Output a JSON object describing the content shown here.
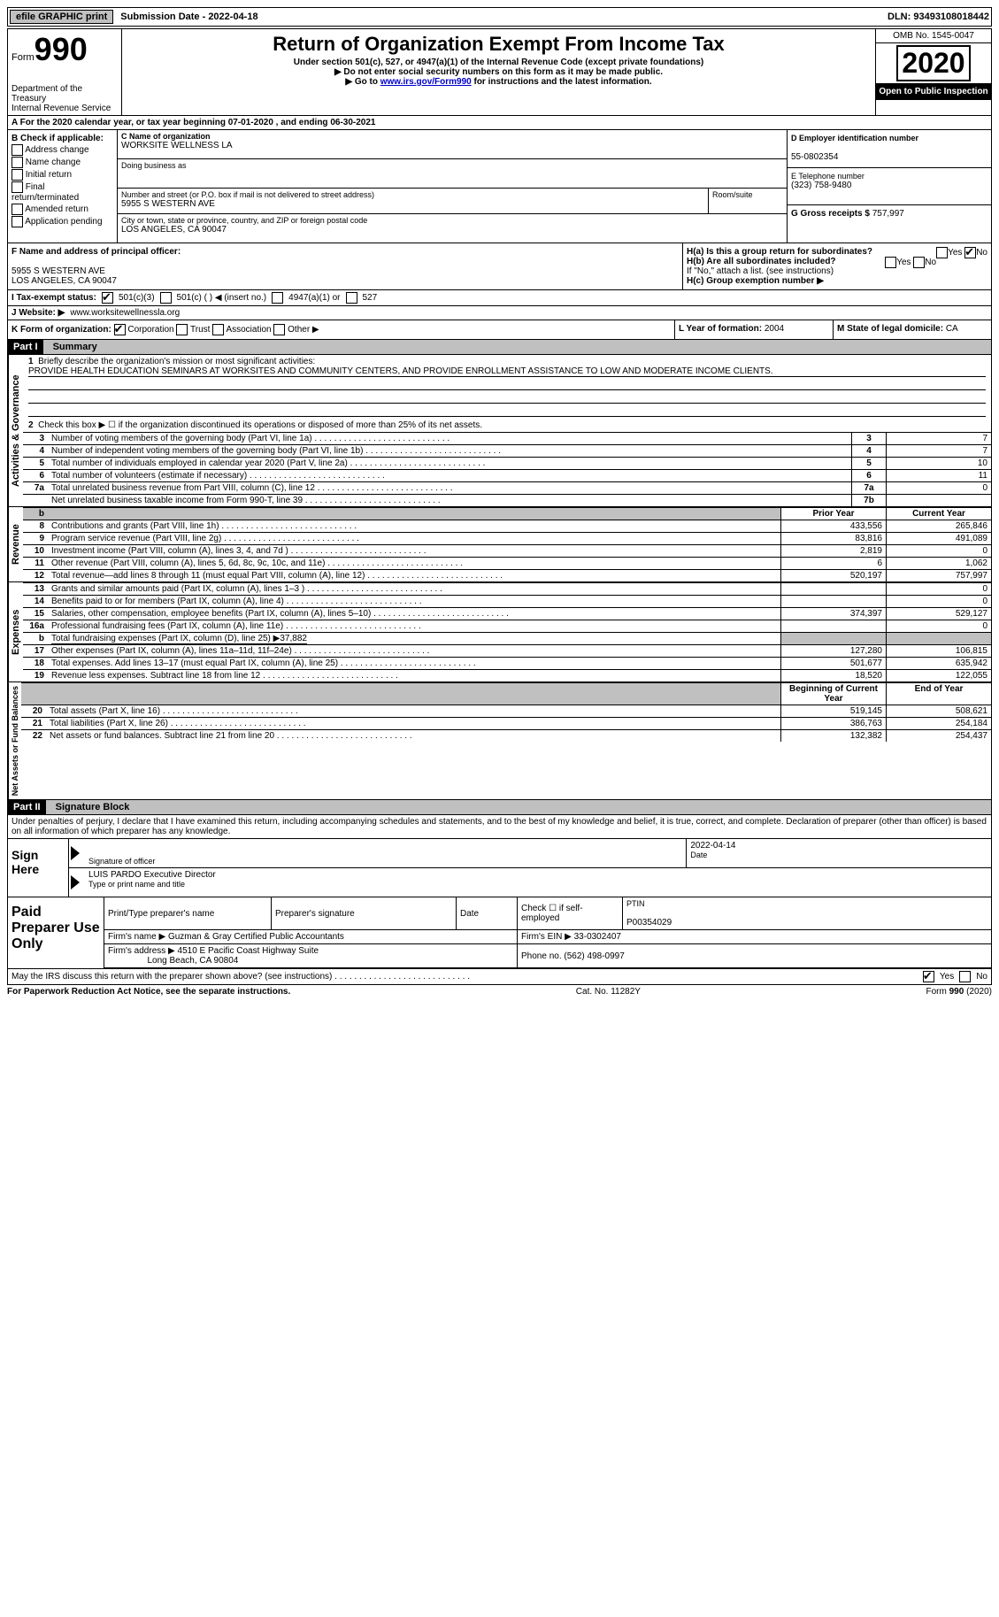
{
  "topbar": {
    "efile": "efile GRAPHIC print",
    "submission": "Submission Date - 2022-04-18",
    "dln": "DLN: 93493108018442"
  },
  "header": {
    "form_small": "Form",
    "form_big": "990",
    "dept1": "Department of the Treasury",
    "dept2": "Internal Revenue Service",
    "title": "Return of Organization Exempt From Income Tax",
    "subtitle": "Under section 501(c), 527, or 4947(a)(1) of the Internal Revenue Code (except private foundations)",
    "note1": "▶ Do not enter social security numbers on this form as it may be made public.",
    "note2_pre": "▶ Go to ",
    "note2_link": "www.irs.gov/Form990",
    "note2_post": " for instructions and the latest information.",
    "omb": "OMB No. 1545-0047",
    "year": "2020",
    "open": "Open to Public Inspection"
  },
  "row_a": "A For the 2020 calendar year, or tax year beginning 07-01-2020   , and ending 06-30-2021",
  "section_b": {
    "label": "B Check if applicable:",
    "opts": [
      "Address change",
      "Name change",
      "Initial return",
      "Final return/terminated",
      "Amended return",
      "Application pending"
    ]
  },
  "section_c": {
    "name_lbl": "C Name of organization",
    "name": "WORKSITE WELLNESS LA",
    "dba_lbl": "Doing business as",
    "addr_lbl": "Number and street (or P.O. box if mail is not delivered to street address)",
    "addr": "5955 S WESTERN AVE",
    "room_lbl": "Room/suite",
    "city_lbl": "City or town, state or province, country, and ZIP or foreign postal code",
    "city": "LOS ANGELES, CA  90047"
  },
  "section_d": {
    "lbl": "D Employer identification number",
    "val": "55-0802354"
  },
  "section_e": {
    "lbl": "E Telephone number",
    "val": "(323) 758-9480"
  },
  "section_g": {
    "lbl": "G Gross receipts $",
    "val": "757,997"
  },
  "section_f": {
    "lbl": "F Name and address of principal officer:",
    "addr1": "5955 S WESTERN AVE",
    "addr2": "LOS ANGELES, CA  90047"
  },
  "section_h": {
    "ha": "H(a)  Is this a group return for subordinates?",
    "hb": "H(b)  Are all subordinates included?",
    "hnote": "If \"No,\" attach a list. (see instructions)",
    "hc": "H(c)  Group exemption number ▶",
    "yes": "Yes",
    "no": "No"
  },
  "row_i": {
    "lbl": "I   Tax-exempt status:",
    "o1": "501(c)(3)",
    "o2": "501(c) (  ) ◀ (insert no.)",
    "o3": "4947(a)(1) or",
    "o4": "527"
  },
  "row_j": {
    "lbl": "J   Website: ▶",
    "val": "www.worksitewellnessla.org"
  },
  "row_k": {
    "lbl": "K Form of organization:",
    "o1": "Corporation",
    "o2": "Trust",
    "o3": "Association",
    "o4": "Other ▶"
  },
  "row_l": {
    "lbl": "L Year of formation:",
    "val": "2004"
  },
  "row_m": {
    "lbl": "M State of legal domicile:",
    "val": "CA"
  },
  "part1": {
    "hdr": "Part I",
    "title": "Summary"
  },
  "summary1": {
    "lbl": "Briefly describe the organization's mission or most significant activities:",
    "text": "PROVIDE HEALTH EDUCATION SEMINARS AT WORKSITES AND COMMUNITY CENTERS, AND PROVIDE ENROLLMENT ASSISTANCE TO LOW AND MODERATE INCOME CLIENTS."
  },
  "summary2": "Check this box ▶ ☐  if the organization discontinued its operations or disposed of more than 25% of its net assets.",
  "gov_rows": [
    {
      "n": "3",
      "t": "Number of voting members of the governing body (Part VI, line 1a)",
      "box": "3",
      "v": "7"
    },
    {
      "n": "4",
      "t": "Number of independent voting members of the governing body (Part VI, line 1b)",
      "box": "4",
      "v": "7"
    },
    {
      "n": "5",
      "t": "Total number of individuals employed in calendar year 2020 (Part V, line 2a)",
      "box": "5",
      "v": "10"
    },
    {
      "n": "6",
      "t": "Total number of volunteers (estimate if necessary)",
      "box": "6",
      "v": "11"
    },
    {
      "n": "7a",
      "t": "Total unrelated business revenue from Part VIII, column (C), line 12",
      "box": "7a",
      "v": "0"
    },
    {
      "n": "",
      "t": "Net unrelated business taxable income from Form 990-T, line 39",
      "box": "7b",
      "v": ""
    }
  ],
  "col_hdrs": {
    "prior": "Prior Year",
    "current": "Current Year",
    "bcy": "Beginning of Current Year",
    "eoy": "End of Year"
  },
  "revenue_rows": [
    {
      "n": "8",
      "t": "Contributions and grants (Part VIII, line 1h)",
      "p": "433,556",
      "c": "265,846"
    },
    {
      "n": "9",
      "t": "Program service revenue (Part VIII, line 2g)",
      "p": "83,816",
      "c": "491,089"
    },
    {
      "n": "10",
      "t": "Investment income (Part VIII, column (A), lines 3, 4, and 7d )",
      "p": "2,819",
      "c": "0"
    },
    {
      "n": "11",
      "t": "Other revenue (Part VIII, column (A), lines 5, 6d, 8c, 9c, 10c, and 11e)",
      "p": "6",
      "c": "1,062"
    },
    {
      "n": "12",
      "t": "Total revenue—add lines 8 through 11 (must equal Part VIII, column (A), line 12)",
      "p": "520,197",
      "c": "757,997"
    }
  ],
  "expense_rows": [
    {
      "n": "13",
      "t": "Grants and similar amounts paid (Part IX, column (A), lines 1–3 )",
      "p": "",
      "c": "0"
    },
    {
      "n": "14",
      "t": "Benefits paid to or for members (Part IX, column (A), line 4)",
      "p": "",
      "c": "0"
    },
    {
      "n": "15",
      "t": "Salaries, other compensation, employee benefits (Part IX, column (A), lines 5–10)",
      "p": "374,397",
      "c": "529,127"
    },
    {
      "n": "16a",
      "t": "Professional fundraising fees (Part IX, column (A), line 11e)",
      "p": "",
      "c": "0"
    },
    {
      "n": "b",
      "t": "Total fundraising expenses (Part IX, column (D), line 25) ▶37,882",
      "p": "grey",
      "c": "grey"
    },
    {
      "n": "17",
      "t": "Other expenses (Part IX, column (A), lines 11a–11d, 11f–24e)",
      "p": "127,280",
      "c": "106,815"
    },
    {
      "n": "18",
      "t": "Total expenses. Add lines 13–17 (must equal Part IX, column (A), line 25)",
      "p": "501,677",
      "c": "635,942"
    },
    {
      "n": "19",
      "t": "Revenue less expenses. Subtract line 18 from line 12",
      "p": "18,520",
      "c": "122,055"
    }
  ],
  "net_rows": [
    {
      "n": "20",
      "t": "Total assets (Part X, line 16)",
      "p": "519,145",
      "c": "508,621"
    },
    {
      "n": "21",
      "t": "Total liabilities (Part X, line 26)",
      "p": "386,763",
      "c": "254,184"
    },
    {
      "n": "22",
      "t": "Net assets or fund balances. Subtract line 21 from line 20",
      "p": "132,382",
      "c": "254,437"
    }
  ],
  "vlabels": {
    "gov": "Activities & Governance",
    "rev": "Revenue",
    "exp": "Expenses",
    "net": "Net Assets or Fund Balances"
  },
  "part2": {
    "hdr": "Part II",
    "title": "Signature Block",
    "penalty": "Under penalties of perjury, I declare that I have examined this return, including accompanying schedules and statements, and to the best of my knowledge and belief, it is true, correct, and complete. Declaration of preparer (other than officer) is based on all information of which preparer has any knowledge."
  },
  "sign": {
    "here": "Sign Here",
    "sig_lbl": "Signature of officer",
    "date": "2022-04-14",
    "date_lbl": "Date",
    "name": "LUIS PARDO  Executive Director",
    "name_lbl": "Type or print name and title"
  },
  "preparer": {
    "hdr": "Paid Preparer Use Only",
    "col1": "Print/Type preparer's name",
    "col2": "Preparer's signature",
    "col3": "Date",
    "col4": "Check ☐ if self-employed",
    "col5_lbl": "PTIN",
    "col5": "P00354029",
    "firm_lbl": "Firm's name   ▶",
    "firm": "Guzman & Gray Certified Public Accountants",
    "ein_lbl": "Firm's EIN ▶",
    "ein": "33-0302407",
    "addr_lbl": "Firm's address ▶",
    "addr": "4510 E Pacific Coast Highway Suite",
    "addr2": "Long Beach, CA  90804",
    "phone_lbl": "Phone no.",
    "phone": "(562) 498-0997"
  },
  "discuss": "May the IRS discuss this return with the preparer shown above? (see instructions)",
  "footer": {
    "pra": "For Paperwork Reduction Act Notice, see the separate instructions.",
    "cat": "Cat. No. 11282Y",
    "form": "Form 990 (2020)"
  }
}
